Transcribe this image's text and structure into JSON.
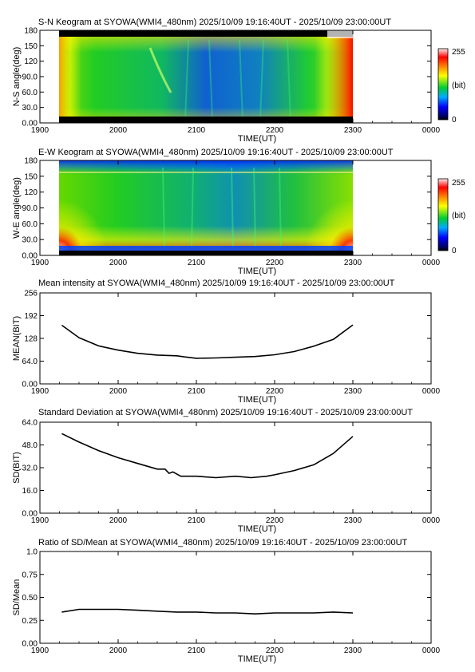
{
  "chart_data": [
    {
      "type": "heatmap",
      "title": "S-N Keogram at SYOWA(WMI4_480nm)    2025/10/09 19:16:40UT - 2025/10/09 23:00:00UT",
      "xlabel": "TIME(UT)",
      "ylabel": "N-S angle(deg)",
      "x_ticks": [
        "1900",
        "2000",
        "2100",
        "2200",
        "2300",
        "0000"
      ],
      "y_ticks": [
        "0.00",
        "30.0",
        "60.0",
        "90.0",
        "120",
        "150",
        "180"
      ],
      "y_tick_values": [
        0,
        30,
        60,
        90,
        120,
        150,
        180
      ],
      "xlim_hours": [
        19,
        24
      ],
      "ylim": [
        0,
        180
      ],
      "data_hours": [
        19.278,
        23.0
      ],
      "colorbar": {
        "min_label": "0",
        "unit_label": "(bit)",
        "max_label": "255"
      }
    },
    {
      "type": "heatmap",
      "title": "E-W Keogram at SYOWA(WMI4_480nm)    2025/10/09 19:16:40UT - 2025/10/09 23:00:00UT",
      "xlabel": "TIME(UT)",
      "ylabel": "W-E angle(deg)",
      "x_ticks": [
        "1900",
        "2000",
        "2100",
        "2200",
        "2300",
        "0000"
      ],
      "y_ticks": [
        "0.00",
        "30.0",
        "60.0",
        "90.0",
        "120",
        "150",
        "180"
      ],
      "y_tick_values": [
        0,
        30,
        60,
        90,
        120,
        150,
        180
      ],
      "xlim_hours": [
        19,
        24
      ],
      "ylim": [
        0,
        180
      ],
      "data_hours": [
        19.278,
        23.0
      ],
      "colorbar": {
        "min_label": "0",
        "unit_label": "(bit)",
        "max_label": "255"
      }
    },
    {
      "type": "line",
      "title": "Mean intensity at SYOWA(WMI4_480nm)    2025/10/09 19:16:40UT - 2025/10/09 23:00:00UT",
      "xlabel": "TIME(UT)",
      "ylabel": "MEAN(BIT)",
      "x_ticks": [
        "1900",
        "2000",
        "2100",
        "2200",
        "2300",
        "0000"
      ],
      "y_ticks": [
        "0.00",
        "64.0",
        "128",
        "192",
        "256"
      ],
      "y_tick_values": [
        0,
        64,
        128,
        192,
        256
      ],
      "xlim_hours": [
        19,
        24
      ],
      "ylim": [
        0,
        256
      ],
      "series": [
        {
          "x_hours": [
            19.28,
            19.5,
            19.75,
            20.0,
            20.25,
            20.5,
            20.75,
            20.85,
            21.0,
            21.25,
            21.5,
            21.75,
            22.0,
            22.25,
            22.5,
            22.75,
            23.0
          ],
          "values": [
            165,
            130,
            107,
            95,
            86,
            81,
            79,
            76,
            72,
            73,
            75,
            77,
            82,
            91,
            106,
            125,
            166
          ]
        }
      ]
    },
    {
      "type": "line",
      "title": "Standard Deviation at SYOWA(WMI4_480nm)    2025/10/09 19:16:40UT - 2025/10/09 23:00:00UT",
      "xlabel": "TIME(UT)",
      "ylabel": "SD(BIT)",
      "x_ticks": [
        "1900",
        "2000",
        "2100",
        "2200",
        "2300",
        "0000"
      ],
      "y_ticks": [
        "0.00",
        "16.0",
        "32.0",
        "48.0",
        "64.0"
      ],
      "y_tick_values": [
        0,
        16,
        32,
        48,
        64
      ],
      "xlim_hours": [
        19,
        24
      ],
      "ylim": [
        0,
        64
      ],
      "series": [
        {
          "x_hours": [
            19.28,
            19.5,
            19.75,
            20.0,
            20.25,
            20.5,
            20.6,
            20.65,
            20.7,
            20.8,
            21.0,
            21.25,
            21.5,
            21.7,
            21.9,
            22.0,
            22.25,
            22.5,
            22.75,
            23.0
          ],
          "values": [
            56,
            50,
            44,
            39,
            35,
            31,
            31,
            28,
            29,
            26,
            26,
            25,
            26,
            25,
            26,
            27,
            30,
            34,
            42,
            54
          ]
        }
      ]
    },
    {
      "type": "line",
      "title": "Ratio of SD/Mean at SYOWA(WMI4_480nm)    2025/10/09 19:16:40UT - 2025/10/09 23:00:00UT",
      "xlabel": "TIME(UT)",
      "ylabel": "SD/Mean",
      "x_ticks": [
        "1900",
        "2000",
        "2100",
        "2200",
        "2300",
        "0000"
      ],
      "y_ticks": [
        "0.00",
        "0.25",
        "0.50",
        "0.75",
        "1.0"
      ],
      "y_tick_values": [
        0,
        0.25,
        0.5,
        0.75,
        1.0
      ],
      "xlim_hours": [
        19,
        24
      ],
      "ylim": [
        0,
        1.0
      ],
      "series": [
        {
          "x_hours": [
            19.28,
            19.5,
            19.75,
            20.0,
            20.25,
            20.5,
            20.75,
            21.0,
            21.25,
            21.5,
            21.75,
            22.0,
            22.25,
            22.5,
            22.75,
            23.0
          ],
          "values": [
            0.34,
            0.37,
            0.37,
            0.37,
            0.36,
            0.35,
            0.34,
            0.34,
            0.33,
            0.33,
            0.32,
            0.33,
            0.33,
            0.33,
            0.34,
            0.33
          ]
        }
      ]
    }
  ]
}
